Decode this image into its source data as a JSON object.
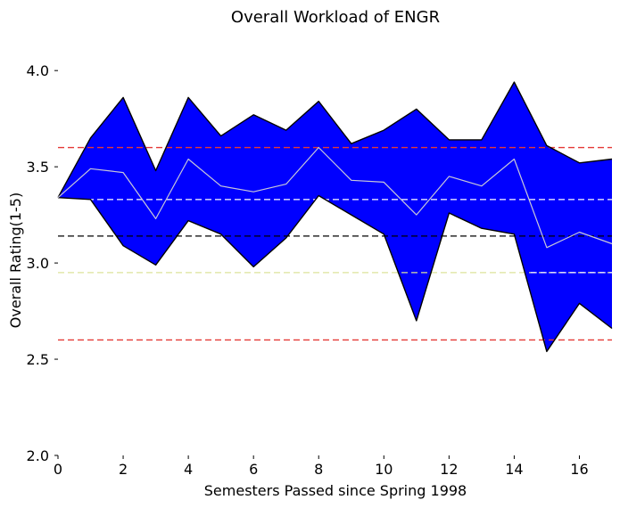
{
  "chart_data": {
    "type": "area",
    "title": "Overall Workload of ENGR",
    "xlabel": "Semesters Passed since Spring 1998",
    "ylabel": "Overall Rating(1-5)",
    "xlim": [
      0,
      17
    ],
    "ylim": [
      2.0,
      4.2
    ],
    "xticks": [
      0,
      2,
      4,
      6,
      8,
      10,
      12,
      14,
      16
    ],
    "xtick_labels": [
      "0",
      "2",
      "4",
      "6",
      "8",
      "10",
      "12",
      "14",
      "16"
    ],
    "yticks": [
      2.0,
      2.5,
      3.0,
      3.5,
      4.0
    ],
    "ytick_labels": [
      "2.0",
      "2.5",
      "3.0",
      "3.5",
      "4.0"
    ],
    "grid": false,
    "x": [
      0,
      1,
      2,
      3,
      4,
      5,
      6,
      7,
      8,
      9,
      10,
      11,
      12,
      13,
      14,
      15,
      16,
      17
    ],
    "series": [
      {
        "role": "upper",
        "values": [
          3.34,
          3.65,
          3.86,
          3.48,
          3.86,
          3.66,
          3.77,
          3.69,
          3.84,
          3.62,
          3.69,
          3.8,
          3.64,
          3.64,
          3.94,
          3.61,
          3.52,
          3.54
        ]
      },
      {
        "role": "mean",
        "values": [
          3.34,
          3.49,
          3.47,
          3.23,
          3.54,
          3.4,
          3.37,
          3.41,
          3.6,
          3.43,
          3.42,
          3.25,
          3.45,
          3.4,
          3.54,
          3.08,
          3.16,
          3.1
        ]
      },
      {
        "role": "lower",
        "values": [
          3.34,
          3.33,
          3.09,
          2.99,
          3.22,
          3.15,
          2.98,
          3.13,
          3.35,
          3.25,
          3.15,
          2.7,
          3.26,
          3.18,
          3.15,
          2.54,
          2.79,
          2.66
        ]
      }
    ],
    "reference_lines": [
      {
        "y": 3.6,
        "color": "#e53935"
      },
      {
        "y": 3.33,
        "color": "#ffffff"
      },
      {
        "y": 3.14,
        "color": "#000000"
      },
      {
        "y": 2.95,
        "color": "#dce39a"
      },
      {
        "y": 2.95,
        "color": "#ffffff",
        "start_x": 14.5
      },
      {
        "y": 2.6,
        "color": "#e53935"
      }
    ],
    "colors": {
      "fill": "#0000ff",
      "edge": "#000000",
      "mean_line": "#c8c8d8"
    }
  }
}
